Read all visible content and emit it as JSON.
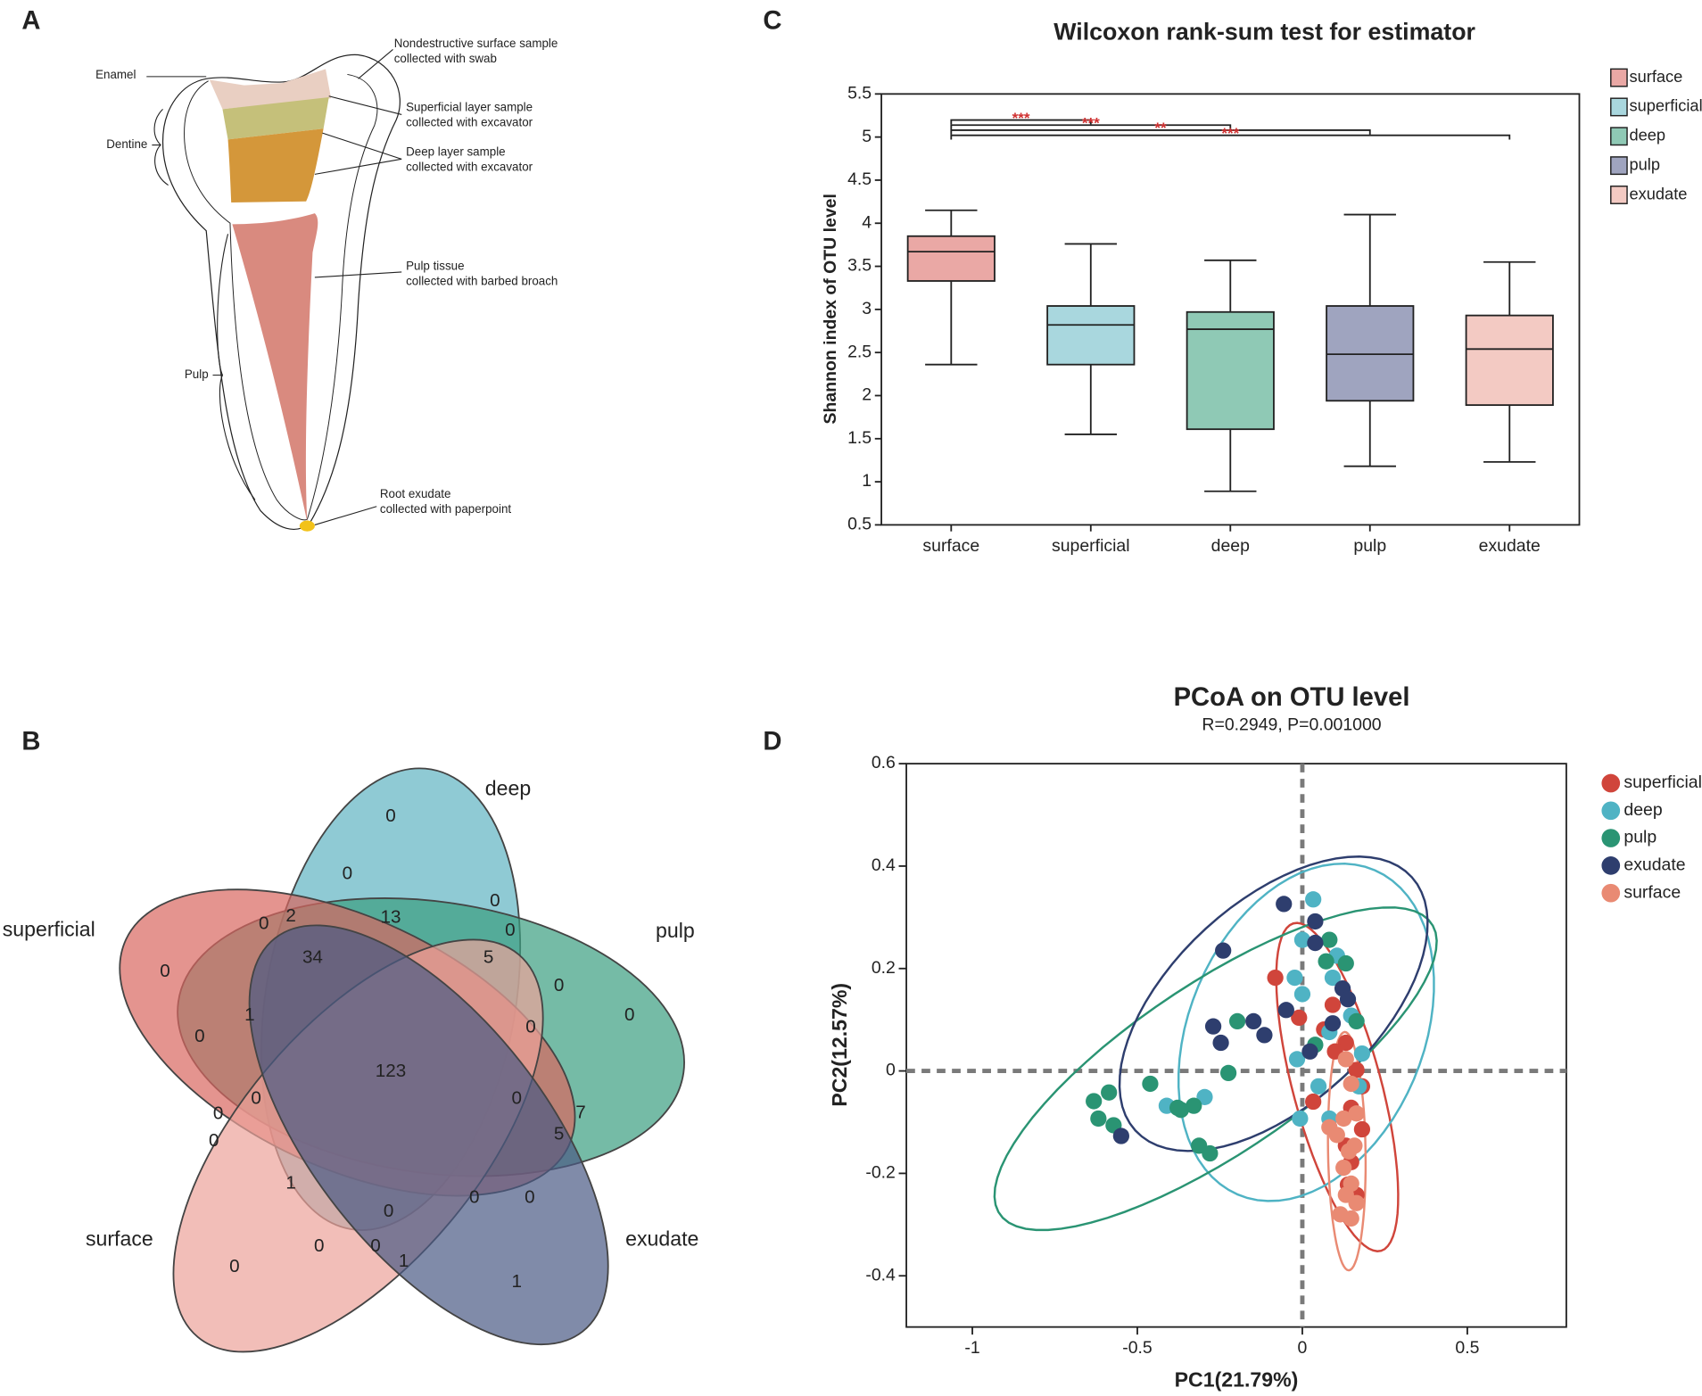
{
  "panels": [
    "A",
    "B",
    "C",
    "D"
  ],
  "diagram": {
    "labels": {
      "enamel": "Enamel",
      "dentine": "Dentine",
      "pulp": "Pulp"
    },
    "annotations": [
      [
        "Nondestructive  surface sample",
        "collected with swab"
      ],
      [
        "Superficial layer sample",
        "collected with excavator"
      ],
      [
        "Deep layer sample",
        "collected with excavator"
      ],
      [
        "Pulp tissue",
        "collected with barbed broach"
      ],
      [
        "Root exudate",
        "collected with paperpoint"
      ]
    ]
  },
  "venn": {
    "sets": [
      {
        "name": "deep",
        "color": "#5fb4c2"
      },
      {
        "name": "pulp",
        "color": "#3a9e80"
      },
      {
        "name": "superficial",
        "color": "#d9675f"
      },
      {
        "name": "surface",
        "color": "#eca39a"
      },
      {
        "name": "exudate",
        "color": "#4a5a85"
      }
    ],
    "regions": [
      0,
      0,
      0,
      0,
      2,
      13,
      0,
      0,
      34,
      5,
      0,
      0,
      1,
      0,
      0,
      123,
      0,
      0,
      0,
      7,
      0,
      5,
      1,
      0,
      0,
      0,
      0,
      0,
      0,
      1,
      1
    ]
  },
  "chart_data": [
    {
      "type": "box",
      "title": "Wilcoxon rank-sum test for estimator",
      "y_label": "Shannon index of OTU level",
      "categories": [
        "surface",
        "superficial",
        "deep",
        "pulp",
        "exudate"
      ],
      "colors": [
        "#eaa8a5",
        "#a9d7de",
        "#8fc9b5",
        "#9fa4bf",
        "#f3cac3"
      ],
      "boxes": [
        {
          "min": 2.36,
          "q1": 3.33,
          "median": 3.67,
          "q3": 3.85,
          "max": 4.15
        },
        {
          "min": 1.55,
          "q1": 2.36,
          "median": 2.82,
          "q3": 3.04,
          "max": 3.76
        },
        {
          "min": 0.89,
          "q1": 1.61,
          "median": 2.77,
          "q3": 2.97,
          "max": 3.57
        },
        {
          "min": 1.18,
          "q1": 1.94,
          "median": 2.48,
          "q3": 3.04,
          "max": 4.1
        },
        {
          "min": 1.23,
          "q1": 1.89,
          "median": 2.54,
          "q3": 2.93,
          "max": 3.55
        }
      ],
      "significance": [
        {
          "from": "surface",
          "to": "superficial",
          "label": "***"
        },
        {
          "from": "surface",
          "to": "deep",
          "label": "***"
        },
        {
          "from": "surface",
          "to": "pulp",
          "label": "**"
        },
        {
          "from": "surface",
          "to": "exudate",
          "label": "***"
        }
      ],
      "ylim": [
        0.5,
        5.5
      ],
      "yticks": [
        0.5,
        1,
        1.5,
        2,
        2.5,
        3,
        3.5,
        4,
        4.5,
        5,
        5.5
      ],
      "legend": "right"
    },
    {
      "type": "scatter",
      "title": "PCoA on OTU level",
      "subtitle": "R=0.2949, P=0.001000",
      "x_label": "PC1(21.79%)",
      "y_label": "PC2(12.57%)",
      "xlim": [
        -1.2,
        0.8
      ],
      "ylim": [
        -0.5,
        0.6
      ],
      "xticks": [
        -1,
        -0.5,
        0,
        0.5
      ],
      "yticks": [
        -0.4,
        -0.2,
        0,
        0.2,
        0.4,
        0.6
      ],
      "reference_lines": {
        "x": 0,
        "y": 0
      },
      "legend": "right",
      "series": [
        {
          "name": "superficial",
          "color": "#d0453b",
          "x": [
            -0.082,
            -0.01,
            0.066,
            0.092,
            0.132,
            0.164,
            0.181,
            0.033,
            0.148,
            0.132,
            0.148,
            0.164,
            0.138,
            0.099,
            0.181
          ],
          "y": [
            0.182,
            0.104,
            0.081,
            0.129,
            0.055,
            0.002,
            -0.03,
            -0.06,
            -0.072,
            -0.146,
            -0.178,
            -0.242,
            -0.222,
            0.038,
            -0.114
          ]
        },
        {
          "name": "deep",
          "color": "#4fb3c4",
          "x": [
            0.033,
            0,
            -0.023,
            0,
            0.092,
            0.148,
            0.082,
            -0.016,
            0.181,
            0.049,
            -0.007,
            -0.411,
            -0.296,
            0.082,
            0.171,
            0.105
          ],
          "y": [
            0.335,
            0.256,
            0.182,
            0.15,
            0.182,
            0.108,
            0.076,
            0.023,
            0.034,
            -0.03,
            -0.093,
            -0.068,
            -0.051,
            -0.093,
            -0.03,
            0.225
          ]
        },
        {
          "name": "pulp",
          "color": "#2a9473",
          "x": [
            0.082,
            0.132,
            0.072,
            0.164,
            -0.197,
            -0.224,
            -0.586,
            -0.632,
            -0.618,
            -0.572,
            -0.461,
            -0.378,
            -0.329,
            -0.313,
            -0.28,
            -0.368,
            0.039
          ],
          "y": [
            0.256,
            0.21,
            0.214,
            0.097,
            0.097,
            -0.004,
            -0.042,
            -0.059,
            -0.093,
            -0.106,
            -0.025,
            -0.072,
            -0.068,
            -0.146,
            -0.161,
            -0.076,
            0.051
          ]
        },
        {
          "name": "exudate",
          "color": "#2e3e6e",
          "x": [
            -0.056,
            -0.24,
            0.039,
            0.039,
            0.122,
            0.138,
            -0.27,
            -0.148,
            -0.115,
            -0.247,
            0.023,
            -0.049,
            -0.549,
            0.092
          ],
          "y": [
            0.326,
            0.235,
            0.292,
            0.25,
            0.161,
            0.14,
            0.087,
            0.097,
            0.07,
            0.055,
            0.038,
            0.119,
            -0.127,
            0.093
          ]
        },
        {
          "name": "surface",
          "color": "#e98a73",
          "x": [
            0.132,
            0.148,
            0.164,
            0.125,
            0.082,
            0.105,
            0.158,
            0.125,
            0.148,
            0.132,
            0.164,
            0.115,
            0.148,
            0.141
          ],
          "y": [
            0.023,
            -0.025,
            -0.083,
            -0.093,
            -0.11,
            -0.125,
            -0.146,
            -0.189,
            -0.22,
            -0.242,
            -0.258,
            -0.28,
            -0.288,
            -0.157
          ]
        }
      ]
    }
  ]
}
